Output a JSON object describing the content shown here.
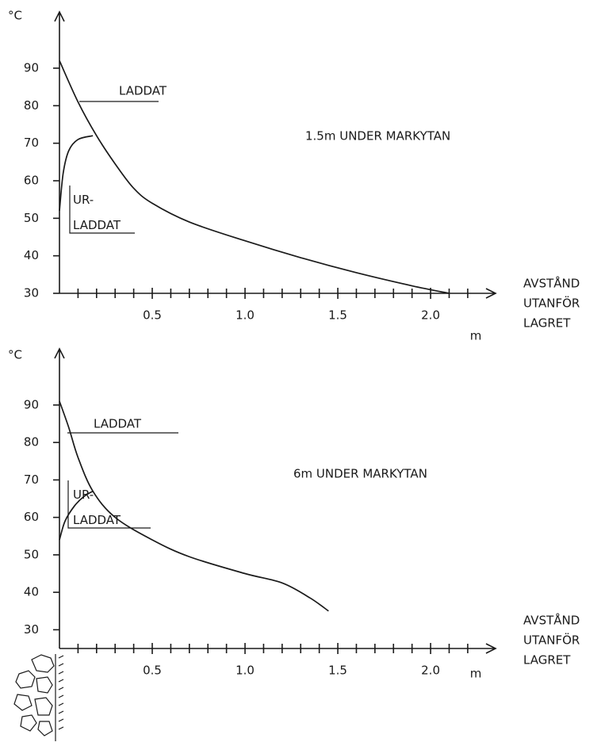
{
  "chart_data": [
    {
      "type": "line",
      "annotation": "1.5m UNDER MARKYTAN",
      "y_label": "°C",
      "x_unit": "m",
      "x_label": [
        "AVSTÅND",
        "UTANFÖR",
        "LAGRET"
      ],
      "xlim": [
        0,
        2.35
      ],
      "ylim": [
        30,
        105
      ],
      "xticks": [
        0.5,
        {
          "value": 1,
          "label": "1.0"
        },
        1.5,
        {
          "value": 2,
          "label": "2.0"
        }
      ],
      "xminor_ticks": [
        0.1,
        0.2,
        0.3,
        0.4,
        0.6,
        0.7,
        0.8,
        0.9,
        1.1,
        1.2,
        1.3,
        1.4,
        1.6,
        1.7,
        1.8,
        1.9,
        2.1,
        2.2
      ],
      "yticks": [
        30,
        40,
        50,
        60,
        70,
        80,
        90
      ],
      "series": [
        {
          "name": "LADDAT",
          "color": "#1a1a1a",
          "x": [
            0,
            0.1,
            0.2,
            0.3,
            0.4,
            0.5,
            0.7,
            1.0,
            1.3,
            1.6,
            1.9,
            2.1
          ],
          "values": [
            92,
            81,
            72,
            64.5,
            58,
            54,
            49,
            44,
            39.5,
            35.5,
            32,
            30
          ]
        },
        {
          "name": "UR-\nLADDAT",
          "color": "#1a1a1a",
          "x": [
            0,
            0.02,
            0.05,
            0.1,
            0.18
          ],
          "values": [
            52,
            62,
            68,
            71,
            72
          ]
        }
      ]
    },
    {
      "type": "line",
      "annotation": "6m UNDER MARKYTAN",
      "y_label": "°C",
      "x_unit": "m",
      "x_label": [
        "AVSTÅND",
        "UTANFÖR",
        "LAGRET"
      ],
      "xlim": [
        0,
        2.35
      ],
      "ylim": [
        25,
        105
      ],
      "xticks": [
        0.5,
        {
          "value": 1,
          "label": "1.0"
        },
        1.5,
        {
          "value": 2,
          "label": "2.0"
        }
      ],
      "xminor_ticks": [
        0.1,
        0.2,
        0.3,
        0.4,
        0.6,
        0.7,
        0.8,
        0.9,
        1.1,
        1.2,
        1.3,
        1.4,
        1.6,
        1.7,
        1.8,
        1.9,
        2.1,
        2.2
      ],
      "yticks": [
        30,
        40,
        50,
        60,
        70,
        80,
        90
      ],
      "series": [
        {
          "name": "LADDAT",
          "color": "#1a1a1a",
          "x": [
            0,
            0.05,
            0.1,
            0.18,
            0.3,
            0.5,
            0.7,
            1.0,
            1.2,
            1.35,
            1.45
          ],
          "values": [
            91,
            84,
            76,
            67,
            60,
            54,
            49.5,
            45,
            42.5,
            38.5,
            35
          ]
        },
        {
          "name": "UR-\nLADDAT",
          "color": "#1a1a1a",
          "x": [
            0,
            0.03,
            0.08,
            0.13,
            0.18
          ],
          "values": [
            54,
            59,
            63,
            65.5,
            67
          ]
        }
      ]
    }
  ]
}
